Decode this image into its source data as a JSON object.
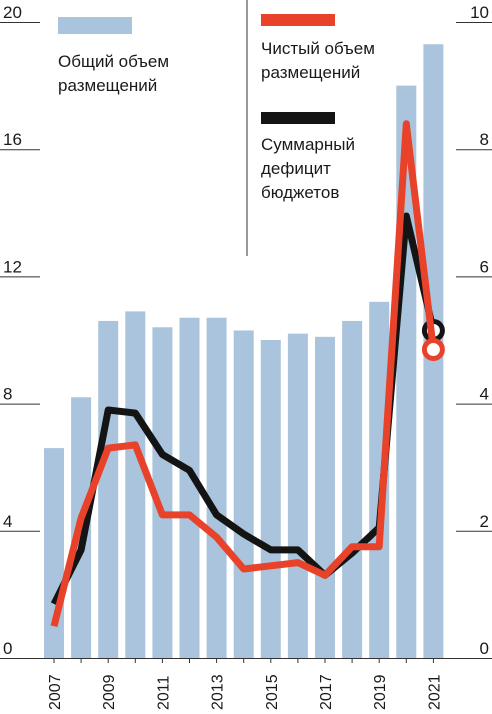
{
  "chart_data": {
    "type": "bar",
    "categories": [
      "2007",
      "2008",
      "2009",
      "2010",
      "2011",
      "2012",
      "2013",
      "2014",
      "2015",
      "2016",
      "2017",
      "2018",
      "2019",
      "2020",
      "2021"
    ],
    "series": [
      {
        "name": "Общий объем размещений",
        "kind": "bar",
        "axis": "left",
        "color": "#a9c4dc",
        "values": [
          6.6,
          8.2,
          10.6,
          10.9,
          10.4,
          10.7,
          10.7,
          10.3,
          10.0,
          10.2,
          10.1,
          10.6,
          11.2,
          18.0,
          19.3
        ]
      },
      {
        "name": "Чистый объем размещений",
        "kind": "line",
        "axis": "right",
        "color": "#e8432a",
        "values": [
          0.5,
          2.2,
          3.3,
          3.35,
          2.25,
          2.25,
          1.9,
          1.4,
          1.45,
          1.5,
          1.3,
          1.75,
          1.75,
          8.4,
          4.85
        ],
        "end_marker": true
      },
      {
        "name": "Суммарный дефицит бюджетов",
        "kind": "line",
        "axis": "right",
        "color": "#141414",
        "values": [
          0.85,
          1.7,
          3.9,
          3.85,
          3.2,
          2.95,
          2.25,
          1.95,
          1.7,
          1.7,
          1.3,
          1.65,
          2.05,
          6.95,
          5.15
        ],
        "end_marker": true
      }
    ],
    "y_left": {
      "ylim": [
        0,
        20
      ],
      "ticks": [
        "0",
        "4",
        "8",
        "12",
        "16",
        "20"
      ]
    },
    "y_right": {
      "ylim": [
        0,
        10
      ],
      "ticks": [
        "0",
        "2",
        "4",
        "6",
        "8",
        "10"
      ]
    },
    "x_ticks": [
      "2007",
      "2009",
      "2011",
      "2013",
      "2015",
      "2017",
      "2019",
      "2021"
    ],
    "grid": false,
    "legend_position": "top"
  }
}
